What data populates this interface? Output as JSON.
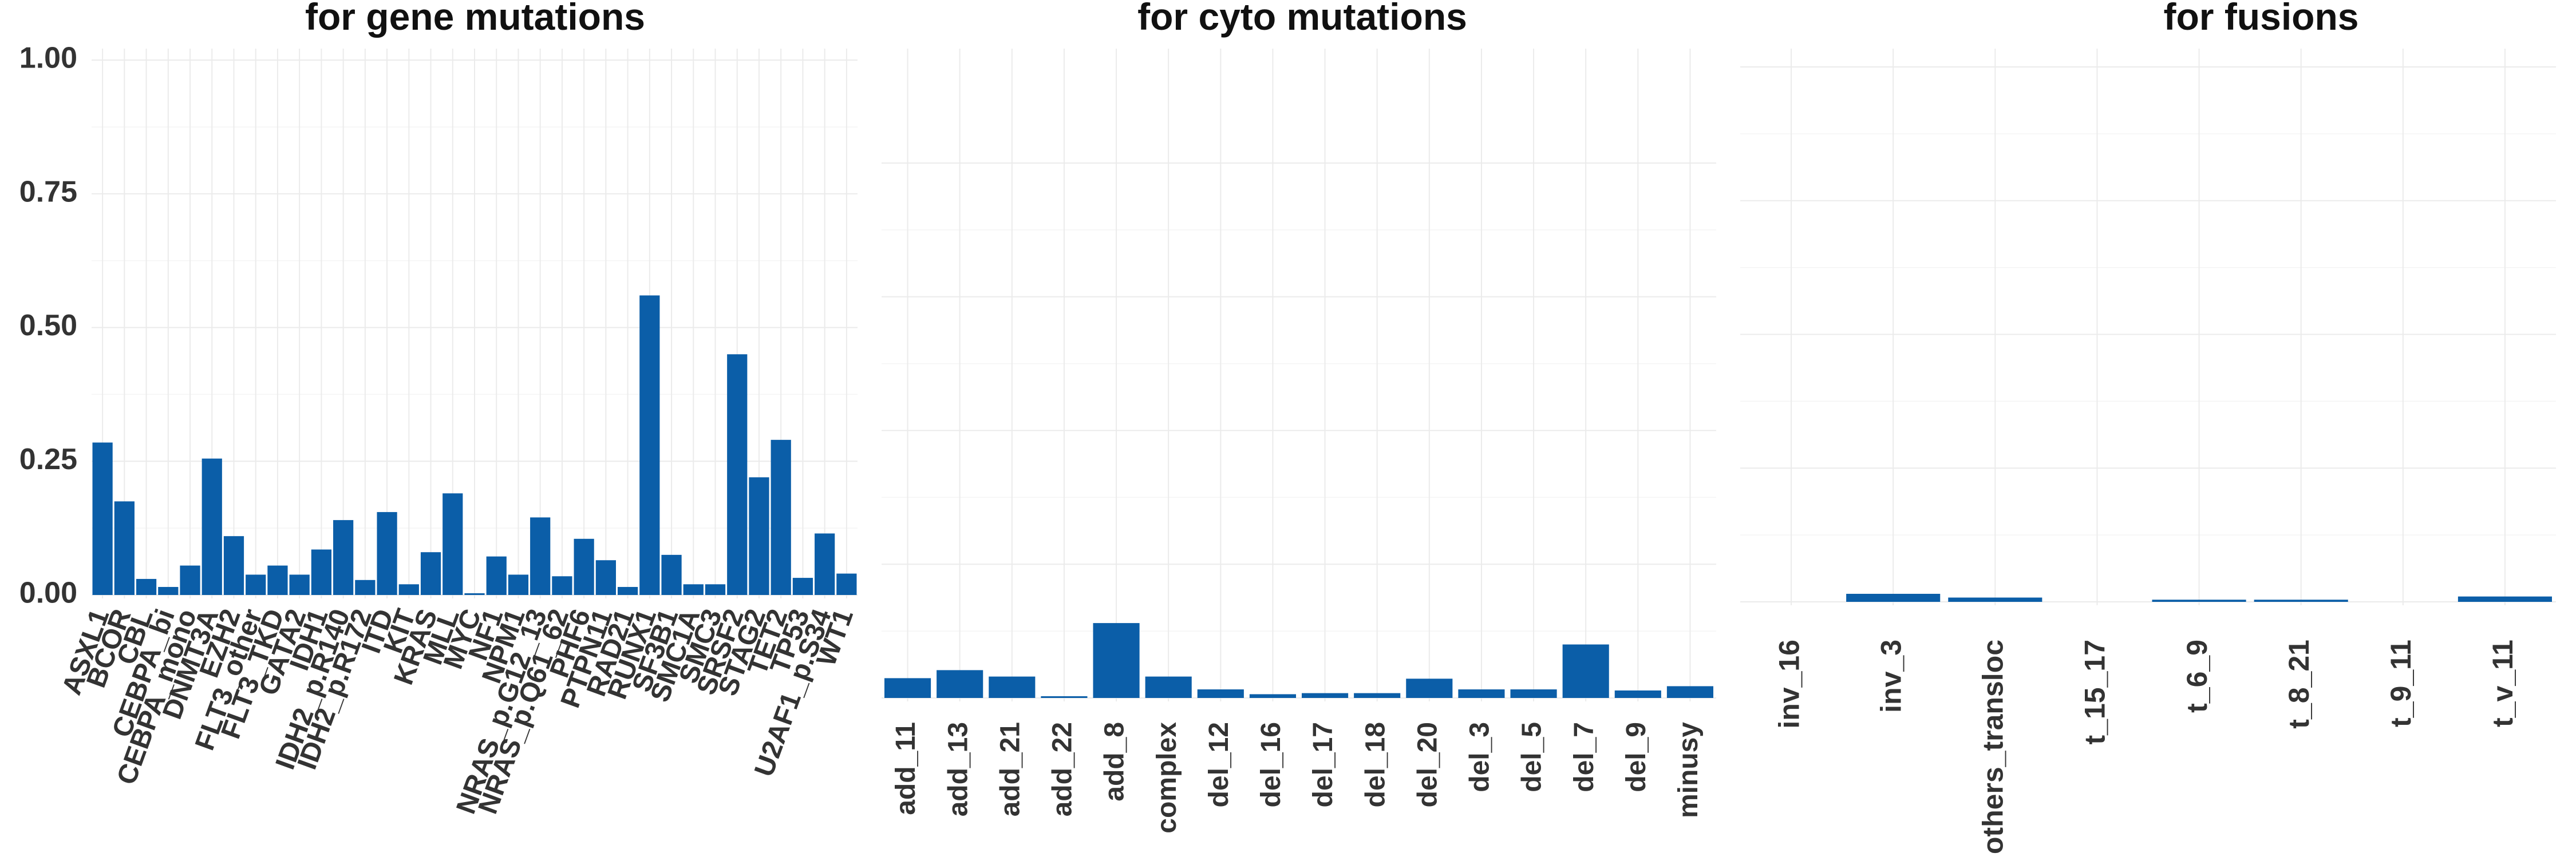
{
  "colors": {
    "bar": "#0b5ea8",
    "grid": "#ebebeb",
    "text": "#333333"
  },
  "y_axis_ticks": [
    "0.00",
    "0.25",
    "0.50",
    "0.75",
    "1.00"
  ],
  "chart_data": [
    {
      "type": "bar",
      "title": "for gene mutations",
      "ylim": [
        0,
        1
      ],
      "yticks": [
        0,
        0.25,
        0.5,
        0.75,
        1.0
      ],
      "grid": true,
      "categories": [
        "ASXL1",
        "BCOR",
        "CBL",
        "CEBPA_bi",
        "CEBPA_mono",
        "DNMT3A",
        "EZH2",
        "FLT3_other",
        "FLT3_TKD",
        "GATA2",
        "IDH1",
        "IDH2_p.R140",
        "IDH2_p.R172",
        "ITD",
        "KIT",
        "KRAS",
        "MLL",
        "MYC",
        "NF1",
        "NPM1",
        "NRAS_p.G12_13",
        "NRAS_p.Q61_62",
        "PHF6",
        "PTPN11",
        "RAD21",
        "RUNX1",
        "SF3B1",
        "SMC1A",
        "SMC3",
        "SRSF2",
        "STAG2",
        "TET2",
        "TP53",
        "U2AF1_p.S34",
        "WT1"
      ],
      "values": [
        0.285,
        0.175,
        0.03,
        0.015,
        0.055,
        0.255,
        0.11,
        0.038,
        0.055,
        0.038,
        0.085,
        0.14,
        0.028,
        0.155,
        0.02,
        0.08,
        0.19,
        0.003,
        0.072,
        0.038,
        0.145,
        0.035,
        0.105,
        0.065,
        0.015,
        0.56,
        0.075,
        0.02,
        0.02,
        0.45,
        0.22,
        0.29,
        0.032,
        0.115,
        0.04
      ]
    },
    {
      "type": "bar",
      "title": "for cyto mutations",
      "ylim": [
        0,
        1
      ],
      "grid": true,
      "categories": [
        "add_11",
        "add_13",
        "add_21",
        "add_22",
        "add_8",
        "complex",
        "del_12",
        "del_16",
        "del_17",
        "del_18",
        "del_20",
        "del_3",
        "del_5",
        "del_7",
        "del_9",
        "minusy"
      ],
      "values": [
        0.037,
        0.052,
        0.04,
        0.003,
        0.14,
        0.04,
        0.016,
        0.007,
        0.009,
        0.009,
        0.036,
        0.016,
        0.016,
        0.1,
        0.014,
        0.022
      ]
    },
    {
      "type": "bar",
      "title": "for fusions",
      "ylim": [
        0,
        1
      ],
      "grid": true,
      "categories": [
        "inv_16",
        "inv_3",
        "others_transloc",
        "t_15_17",
        "t_6_9",
        "t_8_21",
        "t_9_11",
        "t_v_11"
      ],
      "values": [
        0.0,
        0.015,
        0.008,
        0.0,
        0.004,
        0.004,
        0.0,
        0.01
      ]
    }
  ]
}
